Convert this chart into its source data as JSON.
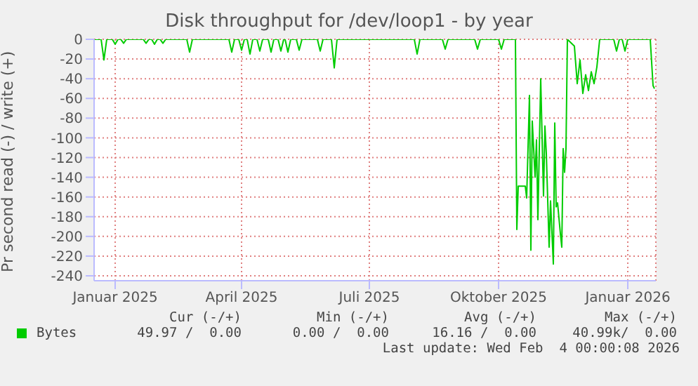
{
  "chart_data": {
    "type": "line",
    "title": "Disk throughput for /dev/loop1 - by year",
    "ylabel": "Pr second read (-) / write (+)",
    "xlim": [
      "2024-12-17",
      "2026-01-21"
    ],
    "xticks": [
      {
        "value": "2025-01-01",
        "label": "Januar 2025"
      },
      {
        "value": "2025-04-01",
        "label": "April 2025"
      },
      {
        "value": "2025-07-01",
        "label": "Juli 2025"
      },
      {
        "value": "2025-10-01",
        "label": "Oktober 2025"
      },
      {
        "value": "2026-01-01",
        "label": "Januar 2026"
      }
    ],
    "ylim": [
      -245,
      0
    ],
    "yticks": [
      0,
      -20,
      -40,
      -60,
      -80,
      -100,
      -120,
      -140,
      -160,
      -180,
      -200,
      -220,
      -240
    ],
    "grid": true,
    "legend": "bottom left",
    "x": [
      "2024-12-17",
      "2024-12-22",
      "2024-12-24",
      "2024-12-26",
      "2024-12-30",
      "2025-01-01",
      "2025-01-03",
      "2025-01-05",
      "2025-01-07",
      "2025-01-09",
      "2025-01-21",
      "2025-01-23",
      "2025-01-25",
      "2025-01-27",
      "2025-01-29",
      "2025-01-31",
      "2025-02-02",
      "2025-02-04",
      "2025-02-06",
      "2025-02-21",
      "2025-02-23",
      "2025-02-25",
      "2025-03-23",
      "2025-03-25",
      "2025-03-27",
      "2025-03-30",
      "2025-04-01",
      "2025-04-03",
      "2025-04-05",
      "2025-04-07",
      "2025-04-09",
      "2025-04-12",
      "2025-04-14",
      "2025-04-16",
      "2025-04-20",
      "2025-04-22",
      "2025-04-24",
      "2025-04-27",
      "2025-04-29",
      "2025-05-01",
      "2025-05-02",
      "2025-05-04",
      "2025-05-06",
      "2025-05-10",
      "2025-05-12",
      "2025-05-14",
      "2025-05-25",
      "2025-05-27",
      "2025-05-29",
      "2025-06-04",
      "2025-06-06",
      "2025-06-08",
      "2025-08-02",
      "2025-08-04",
      "2025-08-06",
      "2025-08-22",
      "2025-08-24",
      "2025-08-26",
      "2025-09-14",
      "2025-09-16",
      "2025-09-18",
      "2025-10-01",
      "2025-10-03",
      "2025-10-05",
      "2025-10-13",
      "2025-10-14",
      "2025-10-15",
      "2025-10-20",
      "2025-10-21",
      "2025-10-23",
      "2025-10-24",
      "2025-10-25",
      "2025-10-27",
      "2025-10-28",
      "2025-10-29",
      "2025-10-31",
      "2025-11-02",
      "2025-11-03",
      "2025-11-04",
      "2025-11-06",
      "2025-11-07",
      "2025-11-09",
      "2025-11-10",
      "2025-11-11",
      "2025-11-12",
      "2025-11-14",
      "2025-11-15",
      "2025-11-16",
      "2025-11-17",
      "2025-11-18",
      "2025-11-19",
      "2025-11-24",
      "2025-11-26",
      "2025-11-28",
      "2025-11-30",
      "2025-12-02",
      "2025-12-04",
      "2025-12-06",
      "2025-12-08",
      "2025-12-10",
      "2025-12-12",
      "2025-12-22",
      "2025-12-24",
      "2025-12-26",
      "2025-12-28",
      "2025-12-30",
      "2026-01-01",
      "2026-01-17",
      "2026-01-19",
      "2026-01-20"
    ],
    "series": [
      {
        "name": "Bytes",
        "color": "#00cc00",
        "values": [
          0,
          0,
          -21,
          0,
          0,
          -5,
          0,
          0,
          -4,
          0,
          0,
          -4,
          0,
          0,
          -5,
          0,
          0,
          -4,
          0,
          0,
          -13,
          0,
          0,
          -13,
          0,
          0,
          -11,
          0,
          0,
          -15,
          0,
          0,
          -12,
          0,
          0,
          -13,
          0,
          0,
          -12,
          0,
          0,
          -13,
          0,
          0,
          -11,
          0,
          0,
          -12,
          0,
          0,
          -29,
          0,
          0,
          -15,
          0,
          0,
          -10,
          0,
          0,
          -10,
          0,
          0,
          -10,
          0,
          0,
          -193,
          -149,
          -149,
          -161,
          -57,
          -214,
          -83,
          -140,
          -102,
          -183,
          -40,
          -159,
          -88,
          -116,
          -211,
          -164,
          -228,
          -85,
          -170,
          -166,
          -197,
          -211,
          -111,
          -135,
          -111,
          0,
          -7,
          -45,
          -21,
          -55,
          -36,
          -52,
          -33,
          -45,
          -28,
          0,
          0,
          -12,
          0,
          0,
          -12,
          0,
          0,
          -47,
          -50
        ]
      }
    ],
    "annotations": [
      "Cur (-/+)",
      "Min (-/+)",
      "Avg (-/+)",
      "Max (-/+)",
      "49.97 /  0.00",
      "0.00 /  0.00",
      "16.16 /  0.00",
      "40.99k/  0.00",
      "Last update: Wed Feb  4 00:00:08 2026"
    ]
  }
}
